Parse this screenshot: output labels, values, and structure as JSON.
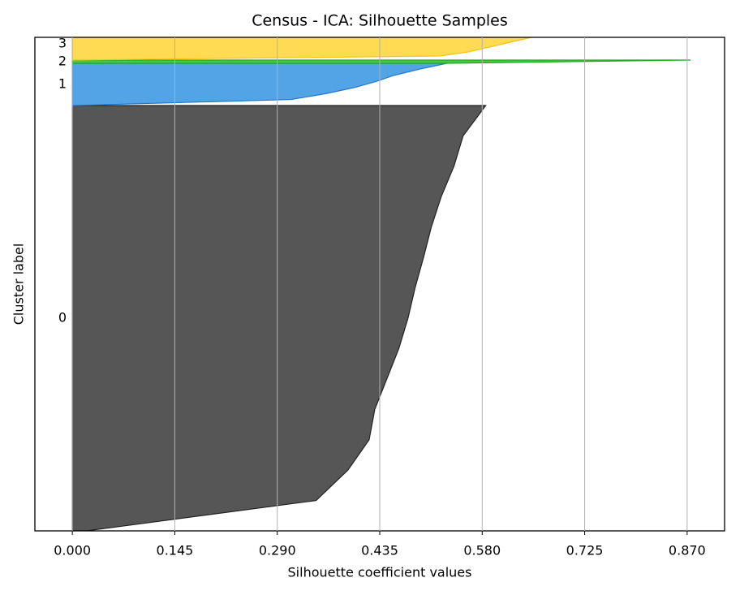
{
  "chart_data": {
    "type": "silhouette",
    "title": "Census - ICA: Silhouette Samples",
    "xlabel": "Silhouette coefficient values",
    "ylabel": "Cluster label",
    "xlim": [
      -0.053,
      0.923
    ],
    "ylim": [
      0,
      152
    ],
    "xticks": [
      {
        "value": 0,
        "label": "0.000"
      },
      {
        "value": 0.145,
        "label": "0.145"
      },
      {
        "value": 0.29,
        "label": "0.290"
      },
      {
        "value": 0.435,
        "label": "0.435"
      },
      {
        "value": 0.58,
        "label": "0.580"
      },
      {
        "value": 0.725,
        "label": "0.725"
      },
      {
        "value": 0.87,
        "label": "0.870"
      }
    ],
    "grid": true,
    "series": [
      {
        "name": "0",
        "color": "#4d4d4d",
        "edgecolor": "#222222",
        "count": 131,
        "values": [
          0.02,
          0.345,
          0.39,
          0.42,
          0.428,
          0.445,
          0.462,
          0.475,
          0.485,
          0.497,
          0.508,
          0.522,
          0.54,
          0.553,
          0.585
        ]
      },
      {
        "name": "1",
        "color": "#4a9fe6",
        "edgecolor": "#2277cc",
        "count": 13,
        "values": [
          0.0,
          0.31,
          0.36,
          0.4,
          0.43,
          0.455,
          0.49,
          0.53
        ]
      },
      {
        "name": "2",
        "color": "#3cc43c",
        "edgecolor": "#22aa22",
        "count": 1,
        "values": [
          0.53,
          0.875
        ]
      },
      {
        "name": "3",
        "color": "#ffd84a",
        "edgecolor": "#f5c518",
        "count": 10,
        "values": [
          0.0,
          0.52,
          0.56,
          0.585,
          0.61,
          0.635,
          0.66,
          0.69,
          0.72
        ]
      }
    ]
  }
}
